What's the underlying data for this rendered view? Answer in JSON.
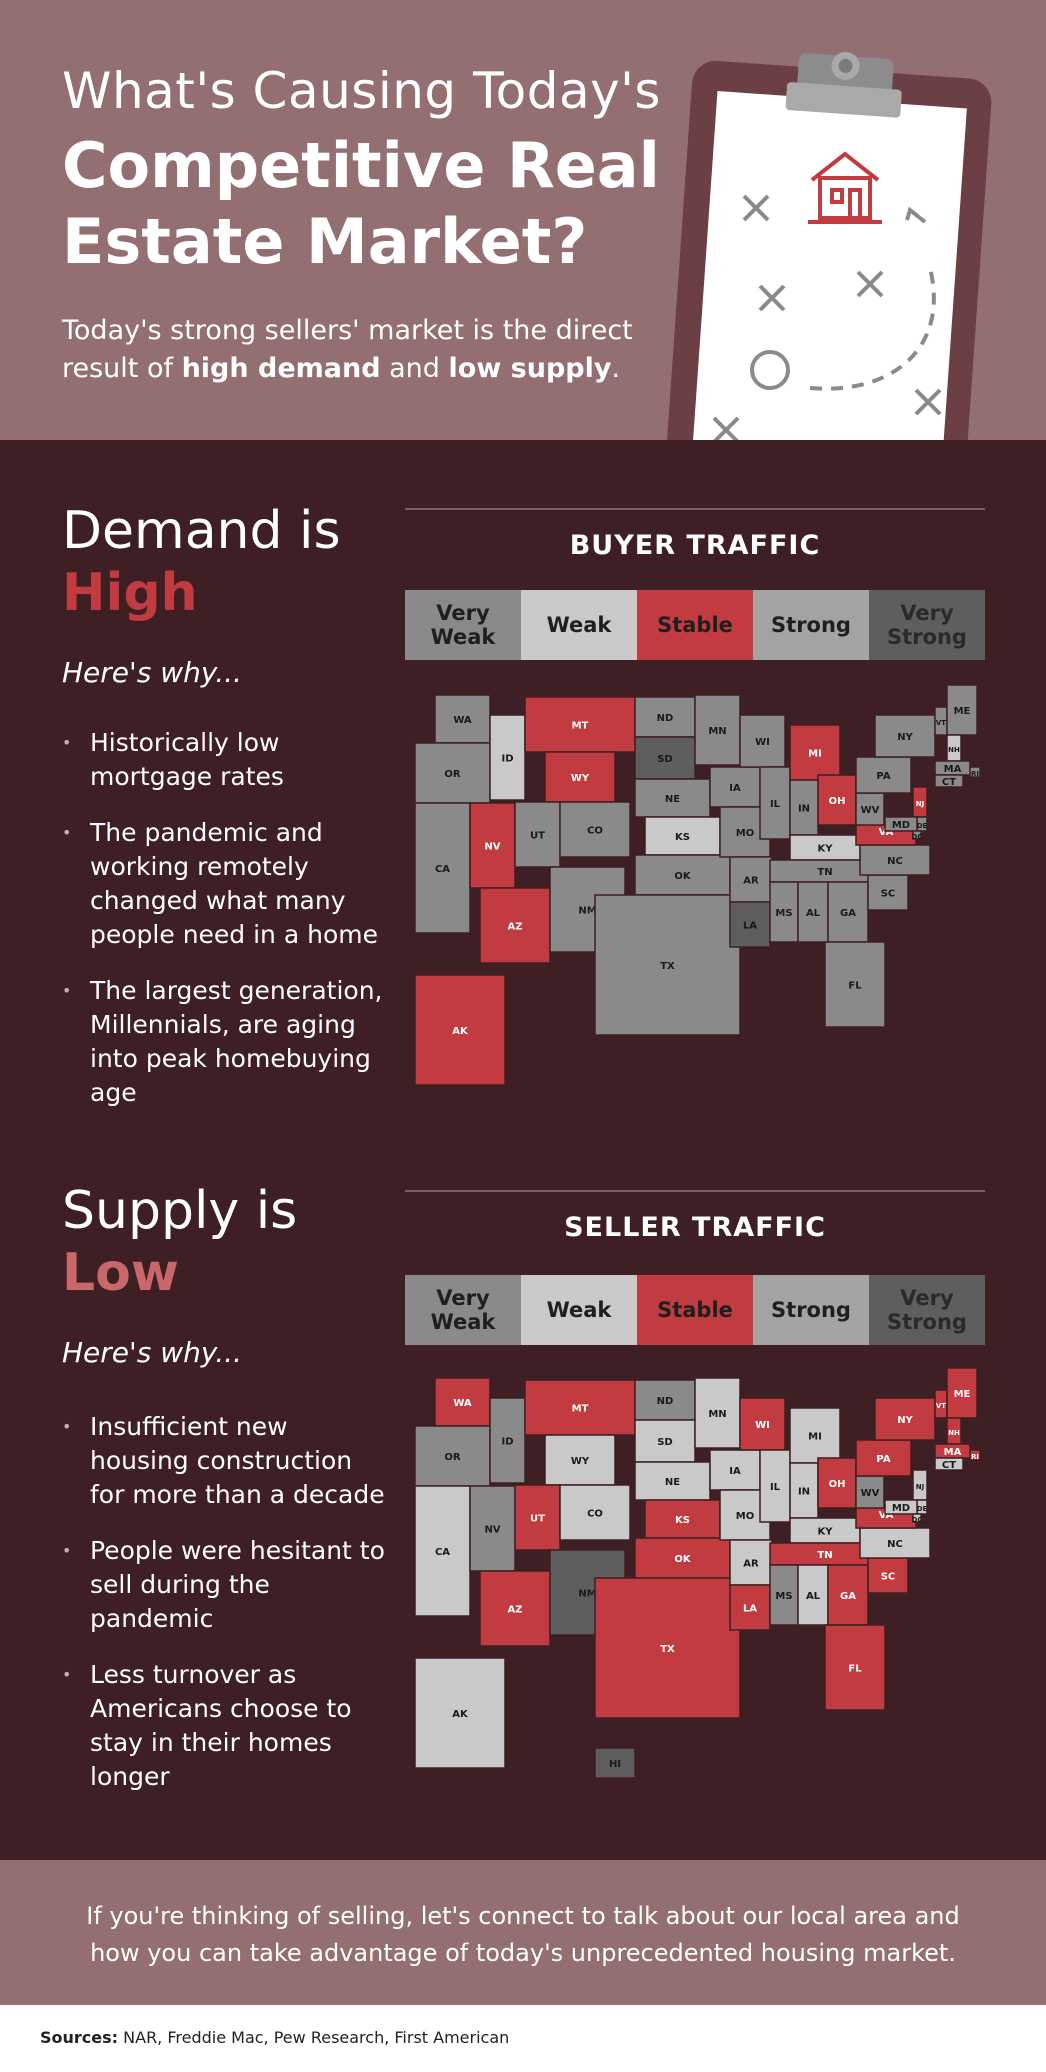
{
  "header": {
    "title_line1": "What's Causing Today's",
    "title_line2": "Competitive Real Estate Market?",
    "subtitle_pre": "Today's strong sellers' market is the direct result of ",
    "subtitle_bold1": "high demand",
    "subtitle_mid": " and ",
    "subtitle_bold2": "low supply",
    "subtitle_post": "."
  },
  "demand": {
    "title": "Demand is",
    "accent": "High",
    "accent_color": "#c13b40",
    "why": "Here's why...",
    "bullets": [
      "Historically low mortgage rates",
      "The pandemic and working remotely changed what many people need in a home",
      "The largest generation, Millennials, are aging into peak homebuying age"
    ],
    "chart_title": "BUYER TRAFFIC"
  },
  "supply": {
    "title": "Supply is",
    "accent": "Low",
    "accent_color": "#c9676b",
    "why": "Here's why...",
    "bullets": [
      "Insufficient new housing construction for more than a decade",
      "People were hesitant to sell during the pandemic",
      "Less turnover as Americans choose to stay in their homes longer"
    ],
    "chart_title": "SELLER TRAFFIC"
  },
  "legend": {
    "very_weak": "Very Weak",
    "weak": "Weak",
    "stable": "Stable",
    "strong": "Strong",
    "very_strong": "Very Strong",
    "colors": {
      "very_weak": "#8a8a8a",
      "weak": "#c9c9c9",
      "stable": "#c13b40",
      "strong": "#a3a3a3",
      "very_strong": "#5e5e5e"
    }
  },
  "buyer_map_labels": [
    "WA",
    "OR",
    "CA",
    "ID",
    "NV",
    "MT",
    "WY",
    "UT",
    "AZ",
    "CO",
    "NM",
    "ND",
    "SD",
    "NE",
    "KS",
    "OK",
    "TX",
    "MN",
    "IA",
    "MO",
    "AR",
    "LA",
    "WI",
    "IL",
    "MI",
    "IN",
    "OH",
    "KY",
    "TN",
    "MS",
    "AL",
    "GA",
    "FL",
    "SC",
    "NC",
    "VA",
    "WV",
    "PA",
    "NY",
    "VT",
    "ME",
    "NH",
    "MA",
    "RI",
    "CT",
    "NJ",
    "DE",
    "MD",
    "DC",
    "AK"
  ],
  "seller_map_labels": [
    "WA",
    "OR",
    "CA",
    "ID",
    "NV",
    "MT",
    "WY",
    "UT",
    "AZ",
    "CO",
    "NM",
    "ND",
    "SD",
    "NE",
    "KS",
    "OK",
    "TX",
    "MN",
    "IA",
    "MO",
    "AR",
    "LA",
    "WI",
    "IL",
    "MI",
    "IN",
    "OH",
    "KY",
    "TN",
    "MS",
    "AL",
    "GA",
    "FL",
    "SC",
    "NC",
    "VA",
    "WV",
    "PA",
    "NY",
    "VT",
    "ME",
    "NH",
    "MA",
    "RI",
    "CT",
    "NJ",
    "DE",
    "MD",
    "DC",
    "AK",
    "HI"
  ],
  "footer": {
    "text": "If you're thinking of selling, let's connect to talk about our local area and how you can take advantage of today's unprecedented housing market."
  },
  "sources": {
    "label": "Sources:",
    "text": " NAR, Freddie Mac, Pew Research, First American"
  }
}
